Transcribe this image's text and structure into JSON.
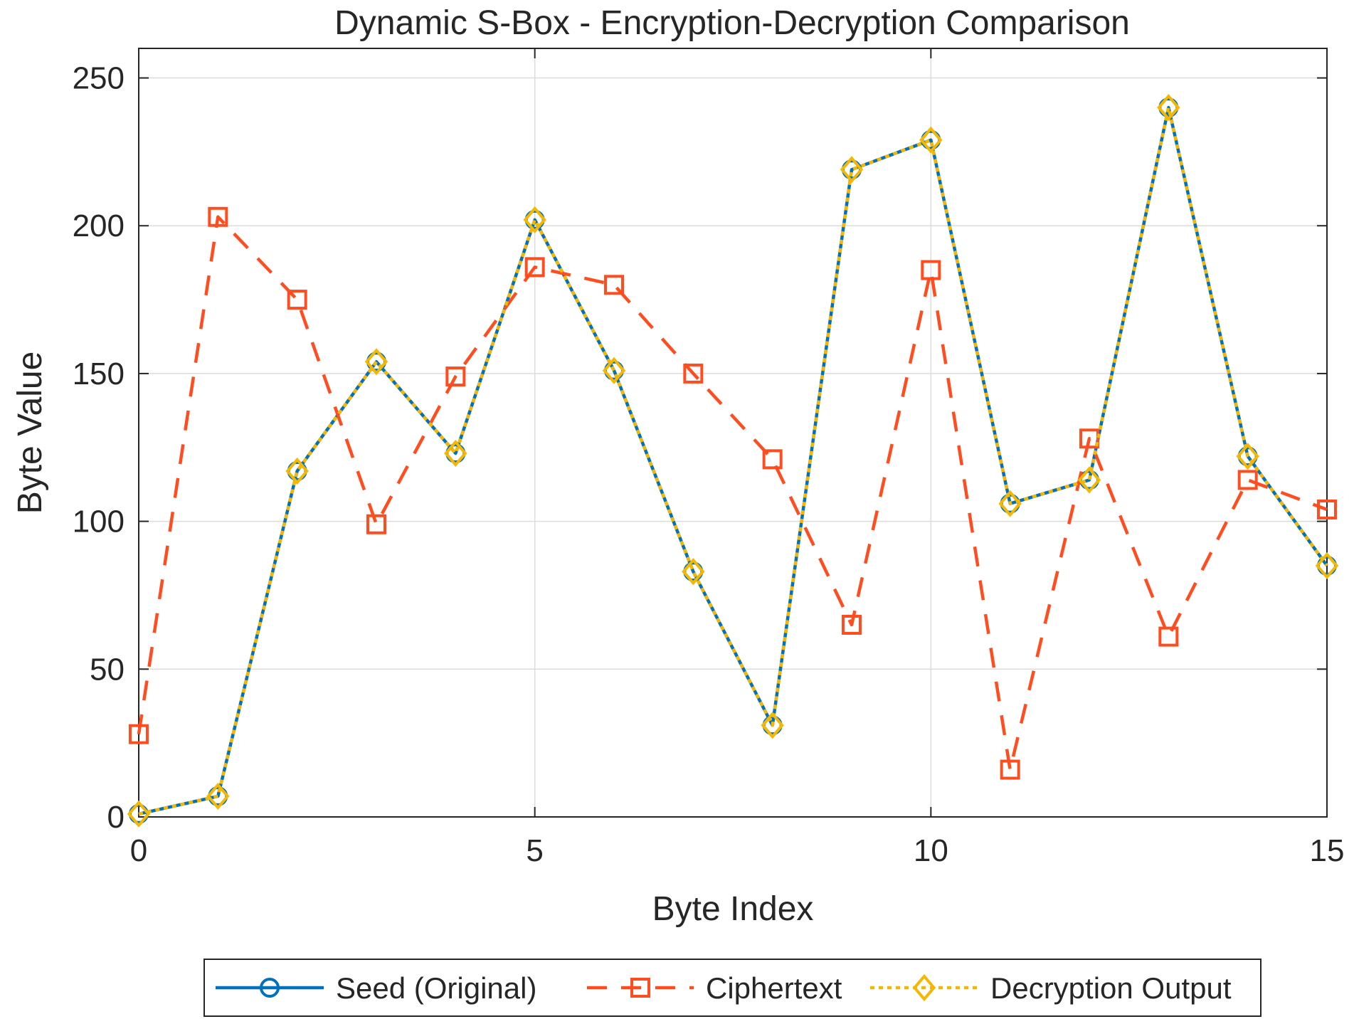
{
  "chart_data": {
    "type": "line",
    "title": "Dynamic S-Box - Encryption-Decryption Comparison",
    "xlabel": "Byte Index",
    "ylabel": "Byte Value",
    "xlim": [
      0,
      15
    ],
    "ylim": [
      0,
      260
    ],
    "xticks": [
      0,
      5,
      10,
      15
    ],
    "yticks": [
      0,
      50,
      100,
      150,
      200,
      250
    ],
    "grid": true,
    "legend_position": "bottom-outside",
    "x": [
      0,
      1,
      2,
      3,
      4,
      5,
      6,
      7,
      8,
      9,
      10,
      11,
      12,
      13,
      14,
      15
    ],
    "series": [
      {
        "name": "Seed (Original)",
        "color": "#0072BD",
        "line_style": "solid",
        "marker": "circle",
        "values": [
          1,
          7,
          117,
          154,
          123,
          202,
          151,
          83,
          31,
          219,
          229,
          106,
          114,
          240,
          122,
          85
        ]
      },
      {
        "name": "Ciphertext",
        "color": "#FF4D1F",
        "line_style": "dashed",
        "marker": "square",
        "values": [
          28,
          203,
          175,
          99,
          149,
          186,
          180,
          150,
          121,
          65,
          185,
          16,
          128,
          61,
          114,
          104
        ]
      },
      {
        "name": "Decryption Output",
        "color": "#F5B700",
        "line_style": "dotted",
        "marker": "diamond",
        "values": [
          1,
          7,
          117,
          154,
          123,
          202,
          151,
          83,
          31,
          219,
          229,
          106,
          114,
          240,
          122,
          85
        ]
      }
    ]
  }
}
